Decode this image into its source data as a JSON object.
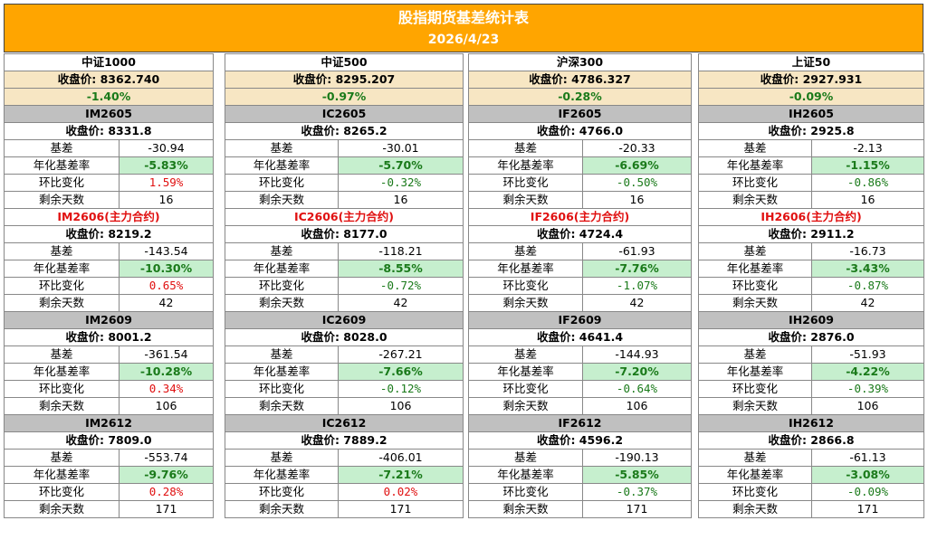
{
  "title": "股指期货基差统计表",
  "date": "2026/4/23",
  "labels": {
    "close": "收盘价:",
    "basis": "基差",
    "annual": "年化基差率",
    "mom": "环比变化",
    "days": "剩余天数"
  },
  "panels": [
    {
      "index_name": "中证1000",
      "index_close": "8362.740",
      "index_change": "-1.40%",
      "contracts": [
        {
          "name": "IM2605",
          "main": false,
          "close": "8331.8",
          "basis": "-30.94",
          "annual": "-5.83%",
          "mom": "1.59%",
          "mom_sign": "pos",
          "days": "16"
        },
        {
          "name": "IM2606(主力合约)",
          "main": true,
          "close": "8219.2",
          "basis": "-143.54",
          "annual": "-10.30%",
          "mom": "0.65%",
          "mom_sign": "pos",
          "days": "42"
        },
        {
          "name": "IM2609",
          "main": false,
          "close": "8001.2",
          "basis": "-361.54",
          "annual": "-10.28%",
          "mom": "0.34%",
          "mom_sign": "pos",
          "days": "106"
        },
        {
          "name": "IM2612",
          "main": false,
          "close": "7809.0",
          "basis": "-553.74",
          "annual": "-9.76%",
          "mom": "0.28%",
          "mom_sign": "pos",
          "days": "171"
        }
      ]
    },
    {
      "index_name": "中证500",
      "index_close": "8295.207",
      "index_change": "-0.97%",
      "contracts": [
        {
          "name": "IC2605",
          "main": false,
          "close": "8265.2",
          "basis": "-30.01",
          "annual": "-5.70%",
          "mom": "-0.32%",
          "mom_sign": "neg",
          "days": "16"
        },
        {
          "name": "IC2606(主力合约)",
          "main": true,
          "close": "8177.0",
          "basis": "-118.21",
          "annual": "-8.55%",
          "mom": "-0.72%",
          "mom_sign": "neg",
          "days": "42"
        },
        {
          "name": "IC2609",
          "main": false,
          "close": "8028.0",
          "basis": "-267.21",
          "annual": "-7.66%",
          "mom": "-0.12%",
          "mom_sign": "neg",
          "days": "106"
        },
        {
          "name": "IC2612",
          "main": false,
          "close": "7889.2",
          "basis": "-406.01",
          "annual": "-7.21%",
          "mom": "0.02%",
          "mom_sign": "pos",
          "days": "171"
        }
      ]
    },
    {
      "index_name": "沪深300",
      "index_close": "4786.327",
      "index_change": "-0.28%",
      "contracts": [
        {
          "name": "IF2605",
          "main": false,
          "close": "4766.0",
          "basis": "-20.33",
          "annual": "-6.69%",
          "mom": "-0.50%",
          "mom_sign": "neg",
          "days": "16"
        },
        {
          "name": "IF2606(主力合约)",
          "main": true,
          "close": "4724.4",
          "basis": "-61.93",
          "annual": "-7.76%",
          "mom": "-1.07%",
          "mom_sign": "neg",
          "days": "42"
        },
        {
          "name": "IF2609",
          "main": false,
          "close": "4641.4",
          "basis": "-144.93",
          "annual": "-7.20%",
          "mom": "-0.64%",
          "mom_sign": "neg",
          "days": "106"
        },
        {
          "name": "IF2612",
          "main": false,
          "close": "4596.2",
          "basis": "-190.13",
          "annual": "-5.85%",
          "mom": "-0.37%",
          "mom_sign": "neg",
          "days": "171"
        }
      ]
    },
    {
      "index_name": "上证50",
      "index_close": "2927.931",
      "index_change": "-0.09%",
      "contracts": [
        {
          "name": "IH2605",
          "main": false,
          "close": "2925.8",
          "basis": "-2.13",
          "annual": "-1.15%",
          "mom": "-0.86%",
          "mom_sign": "neg",
          "days": "16"
        },
        {
          "name": "IH2606(主力合约)",
          "main": true,
          "close": "2911.2",
          "basis": "-16.73",
          "annual": "-3.43%",
          "mom": "-0.87%",
          "mom_sign": "neg",
          "days": "42"
        },
        {
          "name": "IH2609",
          "main": false,
          "close": "2876.0",
          "basis": "-51.93",
          "annual": "-4.22%",
          "mom": "-0.39%",
          "mom_sign": "neg",
          "days": "106"
        },
        {
          "name": "IH2612",
          "main": false,
          "close": "2866.8",
          "basis": "-61.13",
          "annual": "-3.08%",
          "mom": "-0.09%",
          "mom_sign": "neg",
          "days": "171"
        }
      ]
    }
  ]
}
